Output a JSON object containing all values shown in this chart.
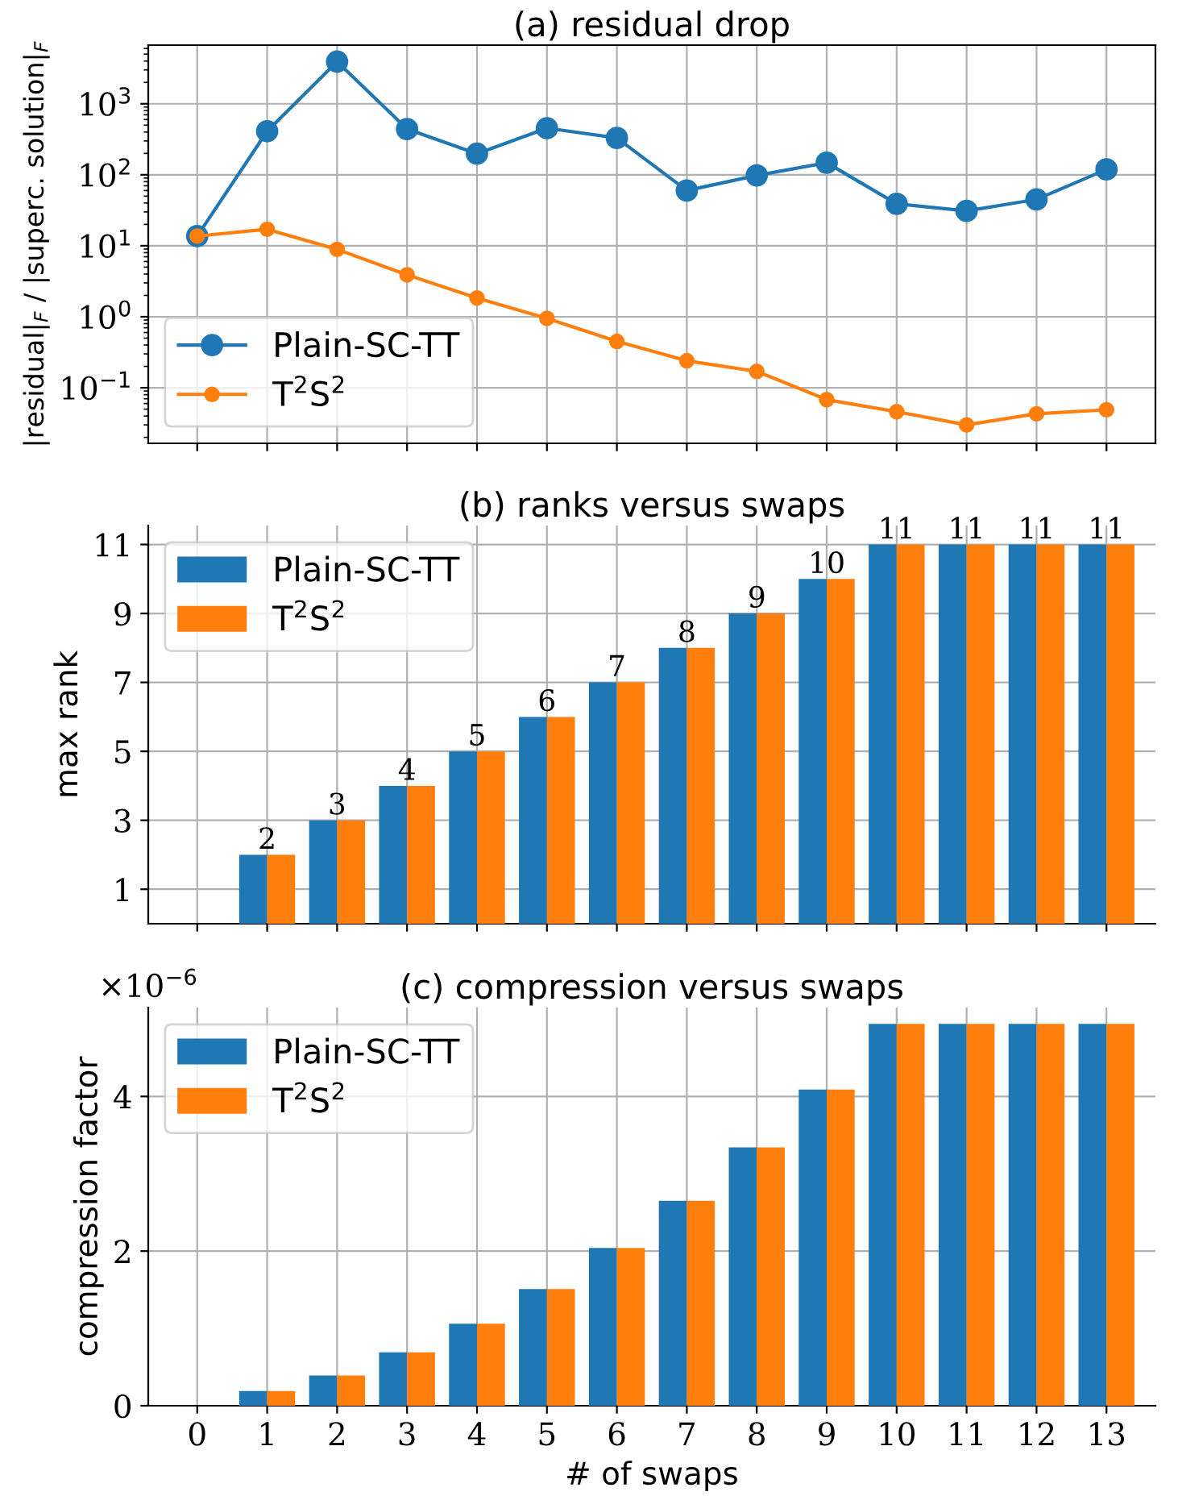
{
  "chart_data": [
    {
      "type": "line",
      "title": "(a) residual drop",
      "ylabel": "|residual|$_{F}$ / |superc. solution|$_{F}$",
      "log": "y",
      "grid": true,
      "legend": "lower left",
      "marker": "circle",
      "line_style": "solid",
      "tick_labels": "y",
      "categories": [
        null,
        null,
        null,
        null,
        null,
        null,
        null,
        null,
        null,
        null,
        null,
        null,
        null,
        null
      ],
      "ylim": [
        0.0165,
        6700
      ],
      "yticks": [
        {
          "value": 0.1,
          "label": "10$^{−1}$"
        },
        {
          "value": 1,
          "label": "10$^{0}$"
        },
        {
          "value": 10,
          "label": "10$^{1}$"
        },
        {
          "value": 100,
          "label": "10$^{2}$"
        },
        {
          "value": 1000,
          "label": "10$^{3}$"
        }
      ],
      "series": [
        {
          "name": "Plain-SC-TT",
          "color": "#1f77b4",
          "values": [
            13.7,
            411,
            3920,
            441,
            198,
            453,
            330,
            60,
            98,
            148,
            39,
            31,
            45,
            119
          ]
        },
        {
          "name": "T$^{2}$S$^{2}$",
          "color": "#ff7f0e",
          "values": [
            13.7,
            17.1,
            8.9,
            3.9,
            1.84,
            0.95,
            0.45,
            0.24,
            0.17,
            0.068,
            0.046,
            0.03,
            0.043,
            0.049
          ]
        }
      ]
    },
    {
      "type": "bar",
      "title": "(b) ranks versus swaps",
      "ylabel": "max rank",
      "grid": true,
      "legend": "upper left",
      "tick_labels": "y",
      "categories": [
        "0",
        "1",
        "2",
        "3",
        "4",
        "5",
        "6",
        "7",
        "8",
        "9",
        "10",
        "11",
        "12",
        "13"
      ],
      "ylim": [
        0,
        11.55
      ],
      "yticks": [
        1,
        3,
        5,
        7,
        9,
        11
      ],
      "series": [
        {
          "name": "Plain-SC-TT",
          "color": "#1f77b4",
          "values": [
            null,
            2,
            3,
            4,
            5,
            6,
            7,
            8,
            9,
            10,
            11,
            11,
            11,
            11
          ],
          "value_labels": [
            null,
            "2",
            "3",
            "4",
            "5",
            "6",
            "7",
            "8",
            "9",
            "10",
            "11",
            "11",
            "11",
            "11"
          ]
        },
        {
          "name": "T$^{2}$S$^{2}$",
          "color": "#ff7f0e",
          "values": [
            null,
            2,
            3,
            4,
            5,
            6,
            7,
            8,
            9,
            10,
            11,
            11,
            11,
            11
          ]
        }
      ]
    },
    {
      "type": "bar",
      "title": "(c) compression versus swaps",
      "ylabel": "compression factor",
      "xlabel": "# of swaps",
      "grid": true,
      "legend": "upper left",
      "annotations": [
        "×10$^{−6}$"
      ],
      "categories": [
        "0",
        "1",
        "2",
        "3",
        "4",
        "5",
        "6",
        "7",
        "8",
        "9",
        "10",
        "11",
        "12",
        "13"
      ],
      "ylim": [
        0,
        5.15
      ],
      "yticks": [
        0,
        2,
        4
      ],
      "series": [
        {
          "name": "Plain-SC-TT",
          "color": "#1f77b4",
          "values": [
            null,
            0.19,
            0.39,
            0.69,
            1.06,
            1.51,
            2.04,
            2.65,
            3.34,
            4.09,
            4.94,
            4.94,
            4.94,
            4.94
          ]
        },
        {
          "name": "T$^{2}$S$^{2}$",
          "color": "#ff7f0e",
          "values": [
            null,
            0.19,
            0.39,
            0.69,
            1.06,
            1.51,
            2.04,
            2.65,
            3.34,
            4.09,
            4.94,
            4.94,
            4.94,
            4.94
          ]
        }
      ]
    }
  ]
}
